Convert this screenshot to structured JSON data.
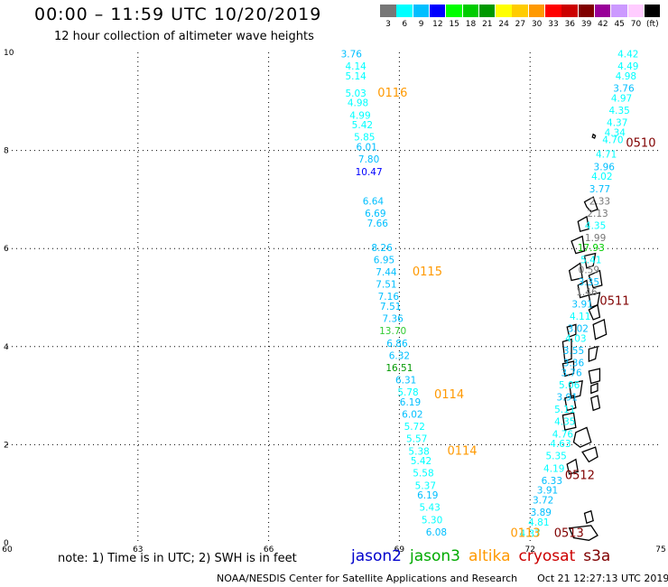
{
  "title": "00:00 – 11:59 UTC 10/20/2019",
  "subtitle": "12 hour collection of altimeter wave heights",
  "scale": {
    "colors": [
      "#777777",
      "#00ffff",
      "#00bfff",
      "#0000ff",
      "#00ff00",
      "#00cc00",
      "#009900",
      "#ffff00",
      "#ffcc00",
      "#ff9900",
      "#ff0000",
      "#cc0000",
      "#800000",
      "#990099",
      "#cc99ff",
      "#ffccff",
      "#000000"
    ],
    "labels": [
      "3",
      "6",
      "9",
      "12",
      "15",
      "18",
      "21",
      "24",
      "27",
      "30",
      "33",
      "36",
      "39",
      "42",
      "45",
      "70",
      "(ft)"
    ]
  },
  "axes": {
    "x_ticks": [
      "60",
      "63",
      "66",
      "69",
      "72",
      "75"
    ],
    "y_ticks": [
      "0",
      "2",
      "4",
      "6",
      "8",
      "10"
    ],
    "xlim": [
      60,
      75
    ],
    "ylim": [
      0,
      10
    ]
  },
  "pass_labels": [
    {
      "text": "0116",
      "lon": 68.5,
      "lat": 9.1,
      "color": "#ff9900"
    },
    {
      "text": "0115",
      "lon": 69.3,
      "lat": 5.45,
      "color": "#ff9900"
    },
    {
      "text": "0114",
      "lon": 69.8,
      "lat": 2.95,
      "color": "#ff9900"
    },
    {
      "text": "0114",
      "lon": 70.1,
      "lat": 1.8,
      "color": "#ff9900"
    },
    {
      "text": "0113",
      "lon": 71.55,
      "lat": 0.12,
      "color": "#ff9900"
    },
    {
      "text": "0510",
      "lon": 74.2,
      "lat": 8.08,
      "color": "#800000"
    },
    {
      "text": "0511",
      "lon": 73.6,
      "lat": 4.85,
      "color": "#800000"
    },
    {
      "text": "0512",
      "lon": 72.8,
      "lat": 1.3,
      "color": "#800000"
    },
    {
      "text": "0513",
      "lon": 72.55,
      "lat": 0.12,
      "color": "#800000"
    }
  ],
  "observations": [
    {
      "v": "3.76",
      "lon": 67.9,
      "lat": 9.9,
      "c": "#00bfff"
    },
    {
      "v": "4.14",
      "lon": 68.0,
      "lat": 9.65,
      "c": "#00ffff"
    },
    {
      "v": "5.14",
      "lon": 68.0,
      "lat": 9.45,
      "c": "#00ffff"
    },
    {
      "v": "5.03",
      "lon": 68.0,
      "lat": 9.1,
      "c": "#00ffff"
    },
    {
      "v": "4.98",
      "lon": 68.05,
      "lat": 8.9,
      "c": "#00ffff"
    },
    {
      "v": "4.99",
      "lon": 68.1,
      "lat": 8.65,
      "c": "#00ffff"
    },
    {
      "v": "5.42",
      "lon": 68.15,
      "lat": 8.45,
      "c": "#00ffff"
    },
    {
      "v": "5.85",
      "lon": 68.2,
      "lat": 8.2,
      "c": "#00ffff"
    },
    {
      "v": "6.01",
      "lon": 68.25,
      "lat": 8.0,
      "c": "#00bfff"
    },
    {
      "v": "7.80",
      "lon": 68.3,
      "lat": 7.75,
      "c": "#00bfff"
    },
    {
      "v": "10.47",
      "lon": 68.3,
      "lat": 7.5,
      "c": "#0000ff"
    },
    {
      "v": "6.64",
      "lon": 68.4,
      "lat": 6.9,
      "c": "#00bfff"
    },
    {
      "v": "6.69",
      "lon": 68.45,
      "lat": 6.65,
      "c": "#00bfff"
    },
    {
      "v": "7.66",
      "lon": 68.5,
      "lat": 6.45,
      "c": "#00bfff"
    },
    {
      "v": "8.26",
      "lon": 68.6,
      "lat": 5.95,
      "c": "#00bfff"
    },
    {
      "v": "6.95",
      "lon": 68.65,
      "lat": 5.7,
      "c": "#00bfff"
    },
    {
      "v": "7.44",
      "lon": 68.7,
      "lat": 5.45,
      "c": "#00bfff"
    },
    {
      "v": "7.51",
      "lon": 68.7,
      "lat": 5.2,
      "c": "#00bfff"
    },
    {
      "v": "7.16",
      "lon": 68.75,
      "lat": 4.95,
      "c": "#00bfff"
    },
    {
      "v": "7.51",
      "lon": 68.8,
      "lat": 4.75,
      "c": "#00bfff"
    },
    {
      "v": "7.36",
      "lon": 68.85,
      "lat": 4.5,
      "c": "#00bfff"
    },
    {
      "v": "13.70",
      "lon": 68.85,
      "lat": 4.25,
      "c": "#33cc33"
    },
    {
      "v": "6.86",
      "lon": 68.95,
      "lat": 4.0,
      "c": "#00bfff"
    },
    {
      "v": "6.32",
      "lon": 69.0,
      "lat": 3.75,
      "c": "#00bfff"
    },
    {
      "v": "16.51",
      "lon": 69.0,
      "lat": 3.5,
      "c": "#009900"
    },
    {
      "v": "6.31",
      "lon": 69.15,
      "lat": 3.25,
      "c": "#00bfff"
    },
    {
      "v": "5.78",
      "lon": 69.2,
      "lat": 3.0,
      "c": "#00ffff"
    },
    {
      "v": "6.19",
      "lon": 69.25,
      "lat": 2.8,
      "c": "#00bfff"
    },
    {
      "v": "6.02",
      "lon": 69.3,
      "lat": 2.55,
      "c": "#00bfff"
    },
    {
      "v": "5.72",
      "lon": 69.35,
      "lat": 2.3,
      "c": "#00ffff"
    },
    {
      "v": "5.57",
      "lon": 69.4,
      "lat": 2.05,
      "c": "#00ffff"
    },
    {
      "v": "5.38",
      "lon": 69.45,
      "lat": 1.8,
      "c": "#00ffff"
    },
    {
      "v": "5.42",
      "lon": 69.5,
      "lat": 1.6,
      "c": "#00ffff"
    },
    {
      "v": "5.58",
      "lon": 69.55,
      "lat": 1.35,
      "c": "#00ffff"
    },
    {
      "v": "5.37",
      "lon": 69.6,
      "lat": 1.1,
      "c": "#00ffff"
    },
    {
      "v": "6.19",
      "lon": 69.65,
      "lat": 0.9,
      "c": "#00bfff"
    },
    {
      "v": "5.43",
      "lon": 69.7,
      "lat": 0.65,
      "c": "#00ffff"
    },
    {
      "v": "5.30",
      "lon": 69.75,
      "lat": 0.4,
      "c": "#00ffff"
    },
    {
      "v": "6.08",
      "lon": 69.85,
      "lat": 0.15,
      "c": "#00bfff"
    },
    {
      "v": "4.42",
      "lon": 74.25,
      "lat": 9.9,
      "c": "#00ffff"
    },
    {
      "v": "4.49",
      "lon": 74.25,
      "lat": 9.65,
      "c": "#00ffff"
    },
    {
      "v": "4.98",
      "lon": 74.2,
      "lat": 9.45,
      "c": "#00ffff"
    },
    {
      "v": "3.76",
      "lon": 74.15,
      "lat": 9.2,
      "c": "#00bfff"
    },
    {
      "v": "4.97",
      "lon": 74.1,
      "lat": 9.0,
      "c": "#00ffff"
    },
    {
      "v": "4.35",
      "lon": 74.05,
      "lat": 8.75,
      "c": "#00ffff"
    },
    {
      "v": "4.37",
      "lon": 74.0,
      "lat": 8.5,
      "c": "#00ffff"
    },
    {
      "v": "4.34",
      "lon": 73.95,
      "lat": 8.3,
      "c": "#00ffff"
    },
    {
      "v": "4.70",
      "lon": 73.9,
      "lat": 8.15,
      "c": "#00ffff"
    },
    {
      "v": "4.71",
      "lon": 73.75,
      "lat": 7.85,
      "c": "#00ffff"
    },
    {
      "v": "3.96",
      "lon": 73.7,
      "lat": 7.6,
      "c": "#00bfff"
    },
    {
      "v": "4.02",
      "lon": 73.65,
      "lat": 7.4,
      "c": "#00ffff"
    },
    {
      "v": "3.77",
      "lon": 73.6,
      "lat": 7.15,
      "c": "#00bfff"
    },
    {
      "v": "2.33",
      "lon": 73.6,
      "lat": 6.9,
      "c": "#777777"
    },
    {
      "v": "2.13",
      "lon": 73.55,
      "lat": 6.65,
      "c": "#777777"
    },
    {
      "v": "4.35",
      "lon": 73.5,
      "lat": 6.4,
      "c": "#00ffff"
    },
    {
      "v": "1.99",
      "lon": 73.5,
      "lat": 6.15,
      "c": "#777777"
    },
    {
      "v": "17.93",
      "lon": 73.4,
      "lat": 5.95,
      "c": "#00cc00"
    },
    {
      "v": "5.41",
      "lon": 73.4,
      "lat": 5.7,
      "c": "#00ffff"
    },
    {
      "v": "0.59",
      "lon": 73.35,
      "lat": 5.5,
      "c": "#777777"
    },
    {
      "v": "3.35",
      "lon": 73.35,
      "lat": 5.25,
      "c": "#00bfff"
    },
    {
      "v": "1.46",
      "lon": 73.3,
      "lat": 5.05,
      "c": "#777777"
    },
    {
      "v": "3.91",
      "lon": 73.2,
      "lat": 4.8,
      "c": "#00bfff"
    },
    {
      "v": "4.11",
      "lon": 73.15,
      "lat": 4.55,
      "c": "#00ffff"
    },
    {
      "v": "3.02",
      "lon": 73.1,
      "lat": 4.3,
      "c": "#00bfff"
    },
    {
      "v": "4.03",
      "lon": 73.05,
      "lat": 4.1,
      "c": "#00ffff"
    },
    {
      "v": "3.55",
      "lon": 73.0,
      "lat": 3.85,
      "c": "#00bfff"
    },
    {
      "v": "3.36",
      "lon": 73.0,
      "lat": 3.6,
      "c": "#00bfff"
    },
    {
      "v": "3.76",
      "lon": 72.95,
      "lat": 3.4,
      "c": "#00bfff"
    },
    {
      "v": "5.06",
      "lon": 72.9,
      "lat": 3.15,
      "c": "#00ffff"
    },
    {
      "v": "3.91",
      "lon": 72.85,
      "lat": 2.9,
      "c": "#00bfff"
    },
    {
      "v": "5.11",
      "lon": 72.8,
      "lat": 2.65,
      "c": "#00ffff"
    },
    {
      "v": "4.35",
      "lon": 72.8,
      "lat": 2.4,
      "c": "#00ffff"
    },
    {
      "v": "4.76",
      "lon": 72.75,
      "lat": 2.15,
      "c": "#00ffff"
    },
    {
      "v": "4.63",
      "lon": 72.7,
      "lat": 1.95,
      "c": "#00ffff"
    },
    {
      "v": "5.35",
      "lon": 72.6,
      "lat": 1.7,
      "c": "#00ffff"
    },
    {
      "v": "4.19",
      "lon": 72.55,
      "lat": 1.45,
      "c": "#00ffff"
    },
    {
      "v": "6.33",
      "lon": 72.5,
      "lat": 1.2,
      "c": "#00bfff"
    },
    {
      "v": "3.91",
      "lon": 72.4,
      "lat": 1.0,
      "c": "#00bfff"
    },
    {
      "v": "3.72",
      "lon": 72.3,
      "lat": 0.8,
      "c": "#00bfff"
    },
    {
      "v": "3.89",
      "lon": 72.25,
      "lat": 0.55,
      "c": "#00bfff"
    },
    {
      "v": "4.81",
      "lon": 72.2,
      "lat": 0.35,
      "c": "#00ffff"
    },
    {
      "v": "4.37",
      "lon": 72.0,
      "lat": 0.12,
      "c": "#00ffff"
    }
  ],
  "islands": [
    [
      [
        73.45,
        8.33
      ],
      [
        73.5,
        8.3
      ],
      [
        73.48,
        8.25
      ],
      [
        73.43,
        8.27
      ]
    ],
    [
      [
        73.25,
        6.95
      ],
      [
        73.45,
        7.05
      ],
      [
        73.55,
        6.8
      ],
      [
        73.4,
        6.75
      ],
      [
        73.3,
        6.85
      ]
    ],
    [
      [
        73.1,
        6.55
      ],
      [
        73.3,
        6.65
      ],
      [
        73.35,
        6.4
      ],
      [
        73.15,
        6.35
      ]
    ],
    [
      [
        72.95,
        6.15
      ],
      [
        73.2,
        6.25
      ],
      [
        73.25,
        5.95
      ],
      [
        73.05,
        5.9
      ]
    ],
    [
      [
        73.25,
        5.85
      ],
      [
        73.5,
        5.9
      ],
      [
        73.45,
        5.65
      ],
      [
        73.3,
        5.6
      ]
    ],
    [
      [
        72.9,
        5.55
      ],
      [
        73.15,
        5.7
      ],
      [
        73.2,
        5.4
      ],
      [
        72.95,
        5.35
      ]
    ],
    [
      [
        73.35,
        5.45
      ],
      [
        73.6,
        5.55
      ],
      [
        73.65,
        5.25
      ],
      [
        73.45,
        5.2
      ]
    ],
    [
      [
        73.1,
        5.25
      ],
      [
        73.3,
        5.35
      ],
      [
        73.35,
        5.05
      ],
      [
        73.15,
        5.0
      ]
    ],
    [
      [
        73.35,
        5.05
      ],
      [
        73.6,
        5.1
      ],
      [
        73.55,
        4.85
      ],
      [
        73.4,
        4.8
      ]
    ],
    [
      [
        73.35,
        4.75
      ],
      [
        73.55,
        4.85
      ],
      [
        73.6,
        4.6
      ],
      [
        73.45,
        4.55
      ]
    ],
    [
      [
        72.85,
        4.4
      ],
      [
        73.05,
        4.45
      ],
      [
        73.05,
        4.25
      ],
      [
        72.9,
        4.2
      ]
    ],
    [
      [
        73.45,
        4.45
      ],
      [
        73.7,
        4.55
      ],
      [
        73.75,
        4.25
      ],
      [
        73.5,
        4.15
      ]
    ],
    [
      [
        72.75,
        4.1
      ],
      [
        72.95,
        4.15
      ],
      [
        72.95,
        3.75
      ],
      [
        72.8,
        3.7
      ]
    ],
    [
      [
        73.35,
        3.95
      ],
      [
        73.55,
        4.0
      ],
      [
        73.5,
        3.75
      ],
      [
        73.35,
        3.7
      ]
    ],
    [
      [
        72.75,
        3.65
      ],
      [
        73.0,
        3.7
      ],
      [
        73.0,
        3.45
      ],
      [
        72.8,
        3.4
      ]
    ],
    [
      [
        73.35,
        3.5
      ],
      [
        73.6,
        3.55
      ],
      [
        73.6,
        3.3
      ],
      [
        73.4,
        3.25
      ]
    ],
    [
      [
        72.9,
        3.25
      ],
      [
        73.2,
        3.3
      ],
      [
        73.15,
        3.0
      ],
      [
        72.95,
        2.95
      ]
    ],
    [
      [
        73.4,
        3.2
      ],
      [
        73.55,
        3.25
      ],
      [
        73.55,
        3.1
      ],
      [
        73.4,
        3.05
      ]
    ],
    [
      [
        72.8,
        2.95
      ],
      [
        73.0,
        3.0
      ],
      [
        73.05,
        2.75
      ],
      [
        72.85,
        2.7
      ]
    ],
    [
      [
        73.4,
        2.95
      ],
      [
        73.55,
        3.0
      ],
      [
        73.6,
        2.75
      ],
      [
        73.45,
        2.7
      ]
    ],
    [
      [
        72.75,
        2.6
      ],
      [
        73.0,
        2.65
      ],
      [
        73.05,
        2.35
      ],
      [
        72.8,
        2.3
      ]
    ],
    [
      [
        73.05,
        2.25
      ],
      [
        73.3,
        2.35
      ],
      [
        73.4,
        2.05
      ],
      [
        73.15,
        1.95
      ],
      [
        73.0,
        2.05
      ]
    ],
    [
      [
        73.2,
        1.85
      ],
      [
        73.5,
        1.95
      ],
      [
        73.55,
        1.75
      ],
      [
        73.35,
        1.65
      ]
    ],
    [
      [
        72.85,
        1.6
      ],
      [
        73.05,
        1.7
      ],
      [
        73.1,
        1.45
      ],
      [
        72.9,
        1.4
      ]
    ],
    [
      [
        73.25,
        0.6
      ],
      [
        73.4,
        0.65
      ],
      [
        73.45,
        0.45
      ],
      [
        73.3,
        0.4
      ]
    ],
    [
      [
        72.9,
        0.3
      ],
      [
        73.4,
        0.35
      ],
      [
        73.55,
        0.15
      ],
      [
        73.35,
        0.05
      ],
      [
        73.0,
        0.1
      ]
    ]
  ],
  "note": "note: 1) Time is in UTC; 2) SWH is in feet",
  "legend": [
    {
      "text": "jason2",
      "color": "#0000cc"
    },
    {
      "text": "jason3",
      "color": "#00aa00"
    },
    {
      "text": "altika",
      "color": "#ff9900"
    },
    {
      "text": "cryosat",
      "color": "#cc0000"
    },
    {
      "text": "s3a",
      "color": "#800000"
    }
  ],
  "footer": {
    "credit": "NOAA/NESDIS Center for Satellite Applications and Research",
    "generated": "Oct 21 12:27:13 UTC 2019"
  }
}
